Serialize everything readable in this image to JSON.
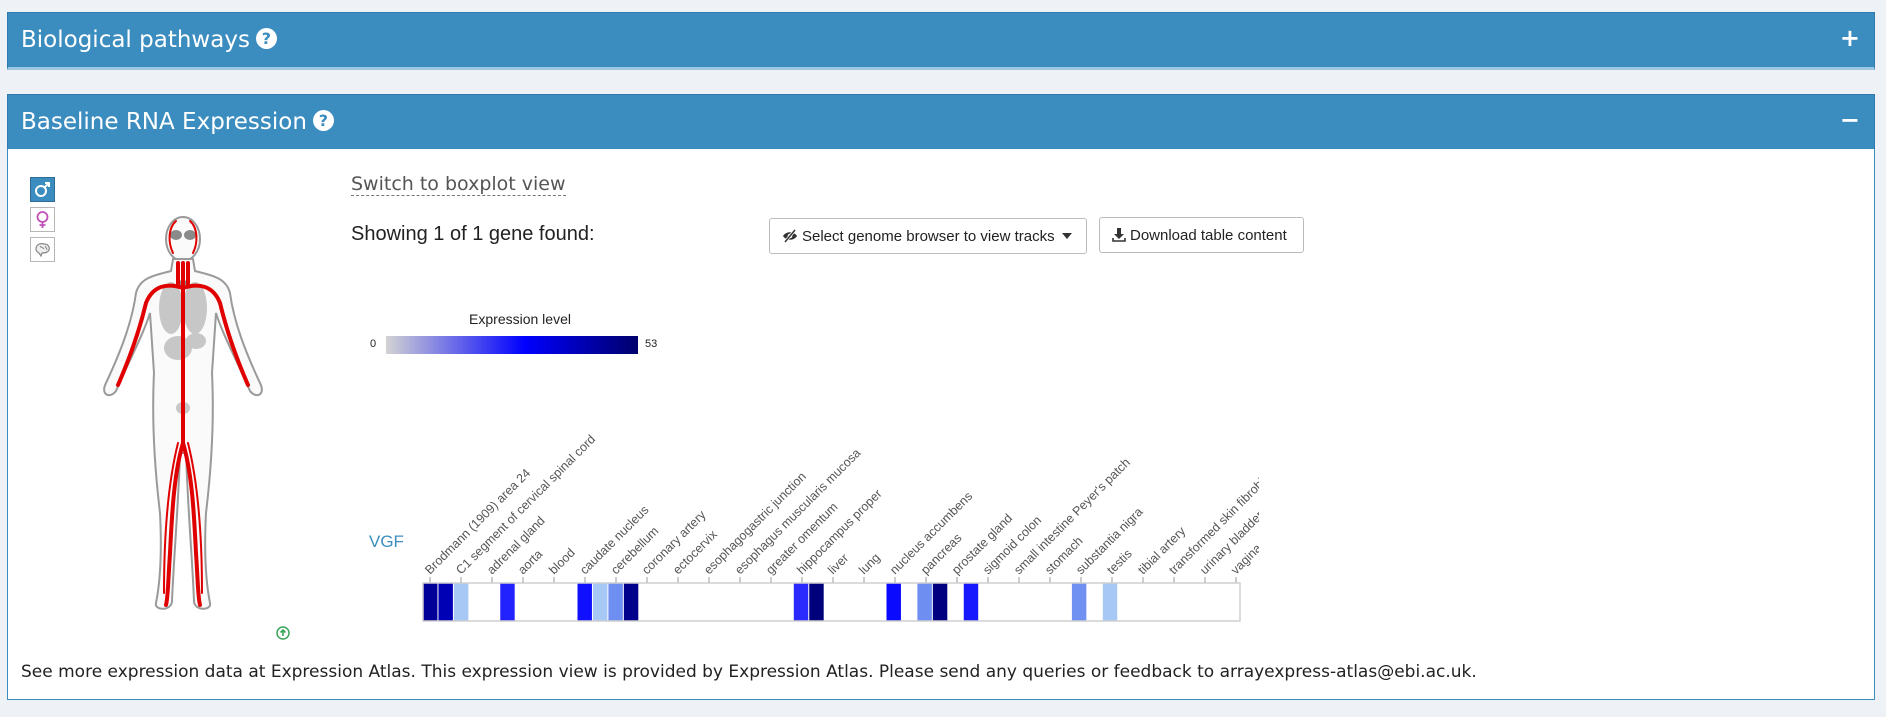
{
  "sections": {
    "pathways": {
      "title": "Biological pathways",
      "help_icon": "question-circle-icon",
      "toggle": "+"
    },
    "rna": {
      "title": "Baseline RNA Expression",
      "help_icon": "question-circle-icon",
      "toggle": "−"
    }
  },
  "anatomogram": {
    "buttons": [
      {
        "icon": "male-icon",
        "selected": true
      },
      {
        "icon": "female-icon",
        "selected": false
      },
      {
        "icon": "brain-icon",
        "selected": false
      }
    ],
    "info_icon": "info-circle-icon"
  },
  "switch_link": "Switch to boxplot view",
  "gene_count": "Showing 1 of 1 gene found:",
  "genome_button": {
    "icon": "eye-slash-icon",
    "label": "Select genome browser to view tracks",
    "caret": "caret-down-icon"
  },
  "download_button": {
    "icon": "download-icon",
    "label": "Download table content"
  },
  "legend": {
    "title": "Expression level",
    "min": "0",
    "max": "53",
    "colors": [
      "#d3d3d3",
      "#0000ff",
      "#00006b"
    ]
  },
  "gene": "VGF",
  "tissues": [
    "Brodmann (1909) area 24",
    "C1 segment of cervical spinal cord",
    "adrenal gland",
    "aorta",
    "blood",
    "caudate nucleus",
    "cerebellum",
    "coronary artery",
    "ectocervix",
    "esophagogastric junction",
    "esophagus muscularis mucosa",
    "greater omentum",
    "hippocampus proper",
    "liver",
    "lung",
    "nucleus accumbens",
    "pancreas",
    "prostate gland",
    "sigmoid colon",
    "small intestine Peyer's patch",
    "stomach",
    "substantia nigra",
    "testis",
    "tibial artery",
    "transformed skin fibroblast",
    "urinary bladder",
    "vagina"
  ],
  "cells": [
    {
      "x": 0,
      "color": "#000099"
    },
    {
      "x": 1,
      "color": "#0000b5"
    },
    {
      "x": 2,
      "color": "#a7c7f5"
    },
    {
      "x": 5,
      "color": "#2222ff"
    },
    {
      "x": 10,
      "color": "#1010ff"
    },
    {
      "x": 11,
      "color": "#a7c7f5"
    },
    {
      "x": 12,
      "color": "#6f8ef2"
    },
    {
      "x": 13,
      "color": "#00008c"
    },
    {
      "x": 24,
      "color": "#2a2aff"
    },
    {
      "x": 25,
      "color": "#00007a"
    },
    {
      "x": 30,
      "color": "#0a0aff"
    },
    {
      "x": 32,
      "color": "#6f8ef2"
    },
    {
      "x": 33,
      "color": "#000080"
    },
    {
      "x": 35,
      "color": "#1818ff"
    },
    {
      "x": 42,
      "color": "#7090f2"
    },
    {
      "x": 44,
      "color": "#a7c7f5"
    }
  ],
  "footer": "See more expression data at Expression Atlas. This expression view is provided by Expression Atlas. Please send any queries or feedback to arrayexpress-atlas@ebi.ac.uk."
}
